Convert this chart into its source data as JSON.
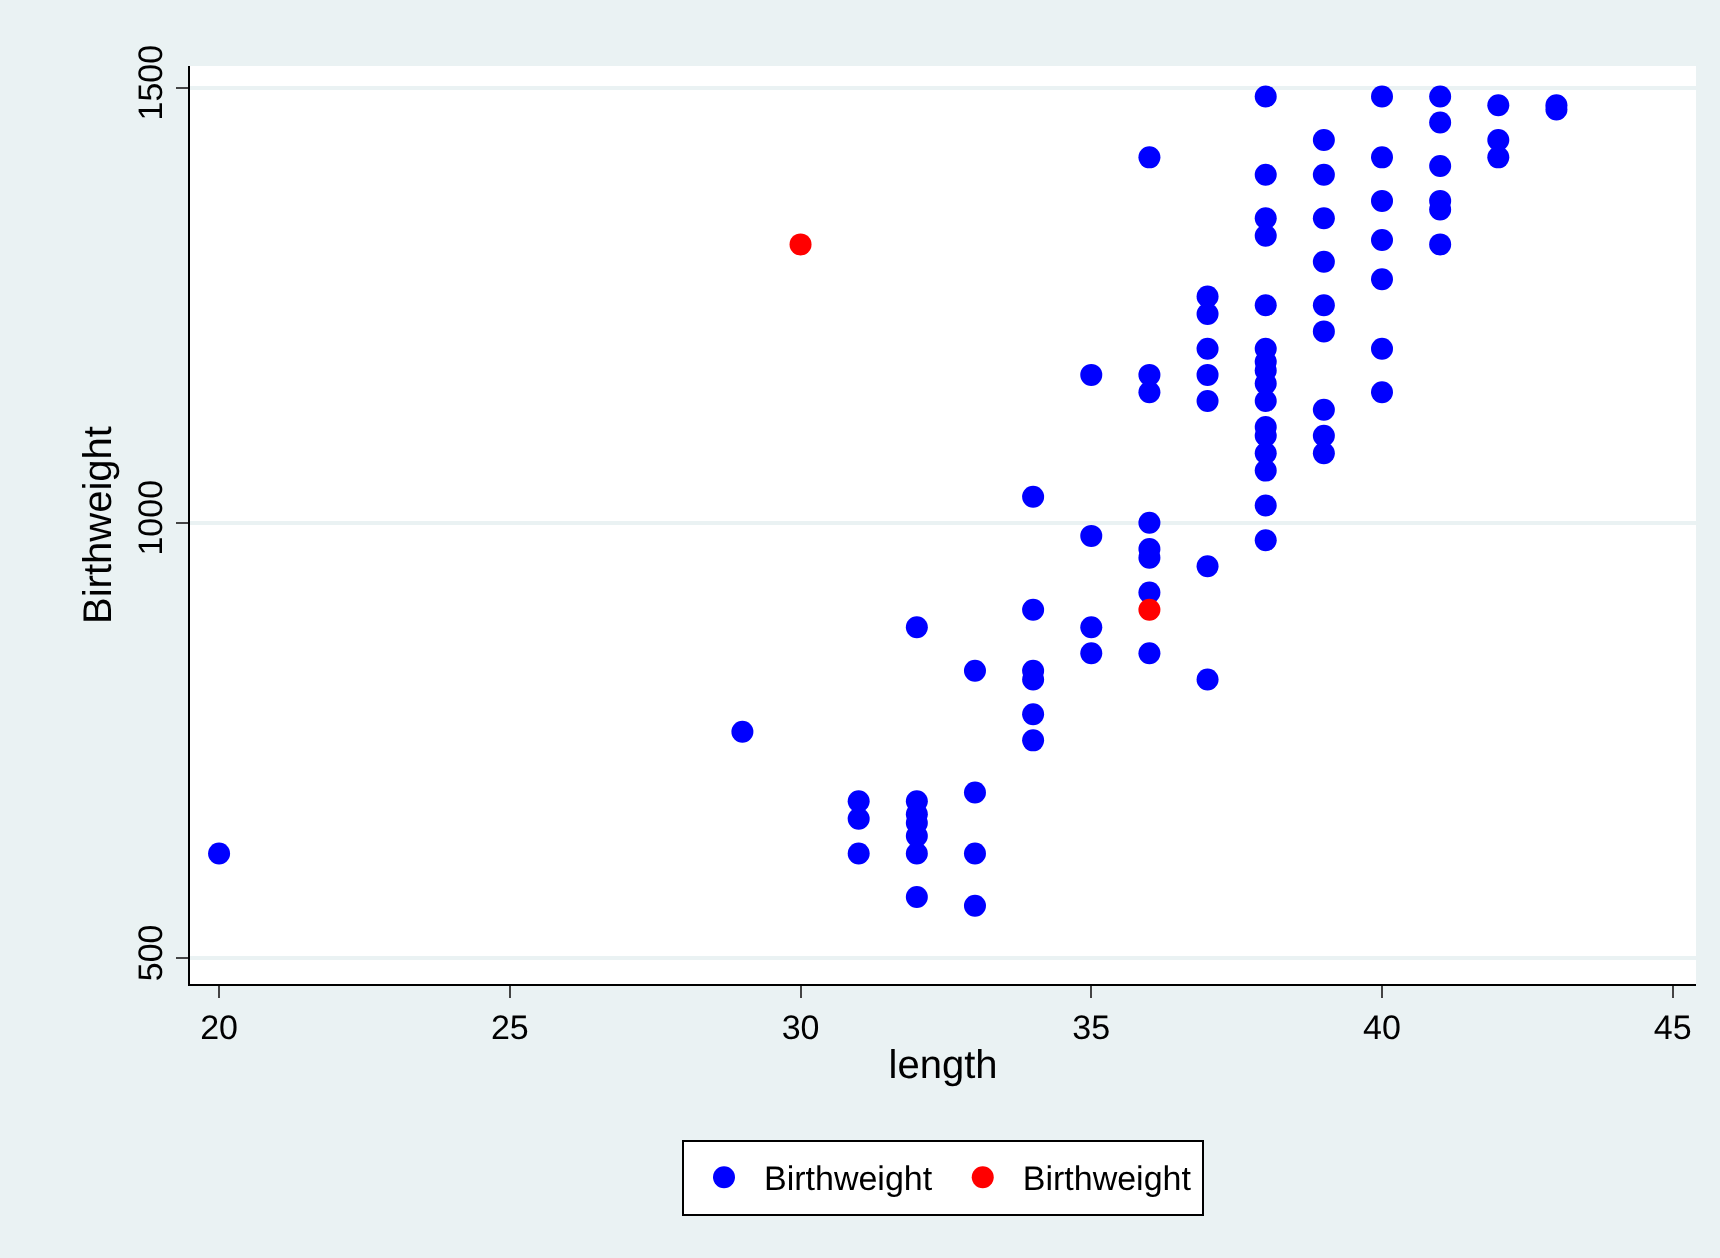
{
  "chart_data": {
    "type": "scatter",
    "xlabel": "length",
    "ylabel": "Birthweight",
    "xlim": [
      19.5,
      45.4
    ],
    "xticks": [
      20,
      25,
      30,
      35,
      40,
      45
    ],
    "ylim": [
      470,
      1525
    ],
    "yticks": [
      500,
      1000,
      1500
    ],
    "grid": "y",
    "legend": "bottom",
    "marker": "circle",
    "series": [
      {
        "name": "Birthweight",
        "color": "#0000ff",
        "x": [
          20,
          29,
          31,
          31,
          31,
          32,
          32,
          32,
          32,
          32,
          32,
          32,
          33,
          33,
          33,
          33,
          34,
          34,
          34,
          34,
          34,
          34,
          35,
          35,
          35,
          35,
          36,
          36,
          36,
          36,
          36,
          36,
          36,
          36,
          37,
          37,
          37,
          37,
          37,
          37,
          37,
          38,
          38,
          38,
          38,
          38,
          38,
          38,
          38,
          38,
          38,
          38,
          38,
          38,
          38,
          38,
          38,
          39,
          39,
          39,
          39,
          39,
          39,
          39,
          39,
          39,
          40,
          40,
          40,
          40,
          40,
          40,
          40,
          41,
          41,
          41,
          41,
          41,
          41,
          42,
          42,
          42,
          43,
          43
        ],
        "values": [
          620,
          760,
          680,
          660,
          620,
          880,
          680,
          665,
          655,
          640,
          620,
          570,
          830,
          690,
          620,
          560,
          1030,
          900,
          830,
          820,
          780,
          750,
          1170,
          985,
          880,
          850,
          1420,
          1170,
          1150,
          1000,
          970,
          960,
          920,
          850,
          1260,
          1240,
          1200,
          1170,
          1140,
          950,
          820,
          1490,
          1400,
          1350,
          1330,
          1250,
          1200,
          1185,
          1175,
          1160,
          1140,
          1110,
          1100,
          1080,
          1060,
          1020,
          980,
          1440,
          1400,
          1350,
          1300,
          1250,
          1220,
          1130,
          1100,
          1080,
          1490,
          1420,
          1370,
          1325,
          1280,
          1200,
          1150,
          1490,
          1460,
          1410,
          1370,
          1360,
          1320,
          1480,
          1440,
          1420,
          1480,
          1475
        ]
      },
      {
        "name": "Birthweight",
        "color": "#ff0000",
        "x": [
          30,
          36
        ],
        "values": [
          1320,
          900
        ]
      }
    ]
  }
}
